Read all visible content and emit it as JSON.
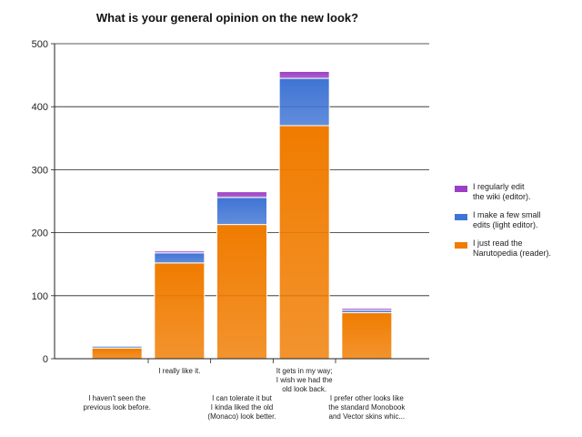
{
  "chart_data": {
    "type": "bar",
    "stacked": true,
    "title": "What is your general opinion on the new look?",
    "xlabel": "",
    "ylabel": "",
    "ylim": [
      0,
      500
    ],
    "yticks": [
      0,
      100,
      200,
      300,
      400,
      500
    ],
    "grid": true,
    "legend_position": "right",
    "categories": [
      [
        "I haven't seen the",
        "previous look before."
      ],
      [
        "I really like it."
      ],
      [
        "I can tolerate it but",
        "I kinda liked the old",
        "(Monaco) look better."
      ],
      [
        "It gets in my way;",
        "I wish we had the",
        "old look back."
      ],
      [
        "I prefer other looks like",
        "the standard Monobook",
        "and Vector skins whic..."
      ]
    ],
    "series": [
      {
        "name": "I just read the Narutopedia (reader).",
        "color": "#f07c00",
        "values": [
          17,
          152,
          213,
          370,
          73
        ]
      },
      {
        "name": "I make a few small edits (light editor).",
        "color": "#3f74d4",
        "values": [
          3,
          16,
          43,
          75,
          4
        ]
      },
      {
        "name": "I regularly edit the wiki (editor).",
        "color": "#9b3fc4",
        "values": [
          1,
          3,
          9,
          11,
          3
        ]
      }
    ],
    "legend": [
      {
        "name": "I regularly edit the wiki (editor).",
        "lines": [
          "I regularly edit",
          "the wiki (editor)."
        ],
        "color": "#9b3fc4"
      },
      {
        "name": "I make a few small edits (light editor).",
        "lines": [
          "I make a few small",
          "edits (light editor)."
        ],
        "color": "#3f74d4"
      },
      {
        "name": "I just read the Narutopedia (reader).",
        "lines": [
          "I just read the",
          "Narutopedia (reader)."
        ],
        "color": "#f07c00"
      }
    ]
  }
}
